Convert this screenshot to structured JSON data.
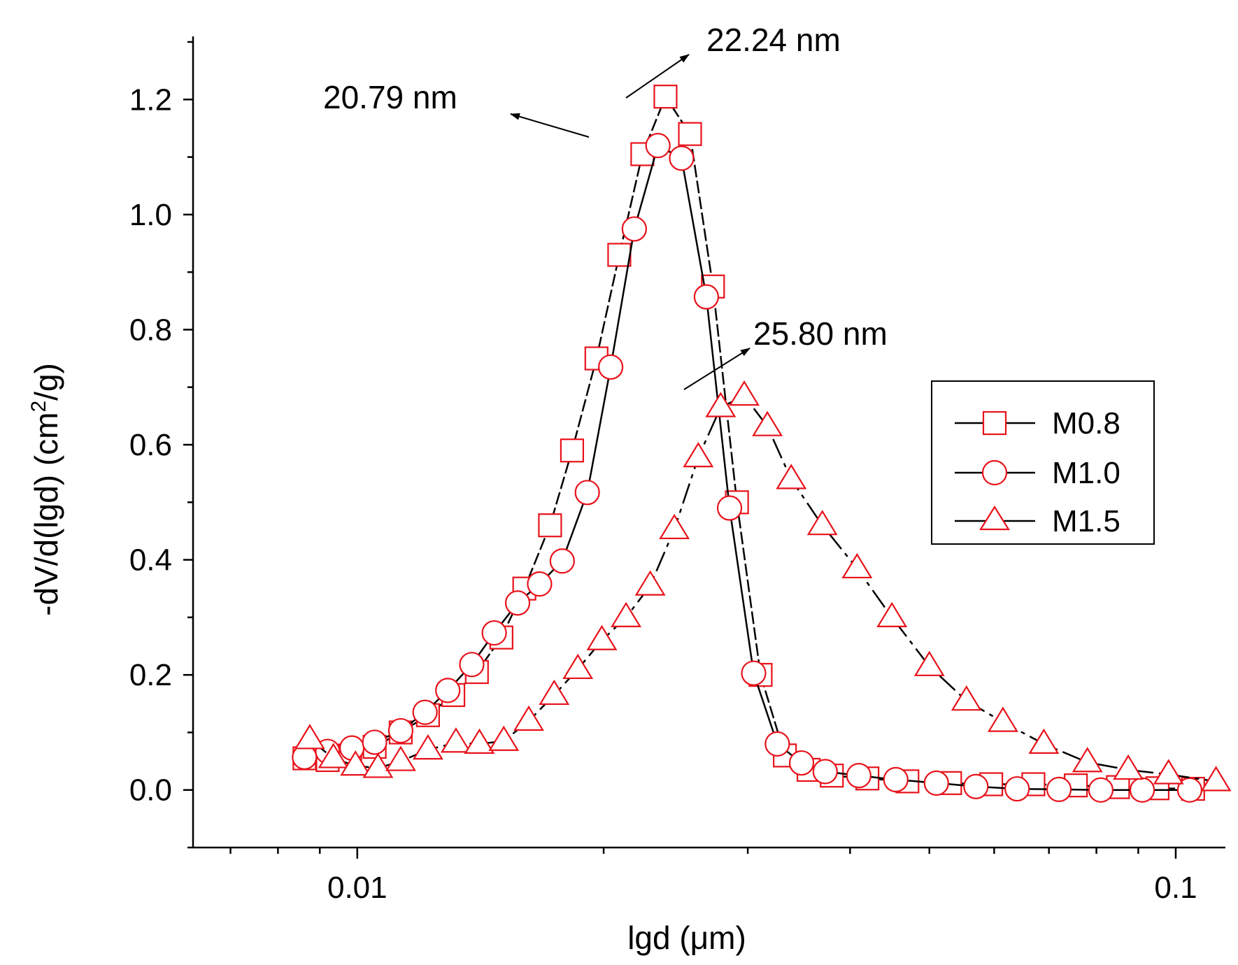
{
  "chart_data": {
    "type": "line",
    "x_scale": "log",
    "xlabel": "lgd (μm)",
    "ylabel_main": "-dV/d(lgd) (cm",
    "ylabel_sup": "2",
    "ylabel_tail": "/g)",
    "xlim": [
      0.0063,
      0.115
    ],
    "ylim": [
      -0.1,
      1.3
    ],
    "x_ticks": [
      {
        "value": 0.01,
        "label": "0.01"
      },
      {
        "value": 0.1,
        "label": "0.1"
      }
    ],
    "y_ticks": [
      {
        "value": 0.0,
        "label": "0.0"
      },
      {
        "value": 0.2,
        "label": "0.2"
      },
      {
        "value": 0.4,
        "label": "0.4"
      },
      {
        "value": 0.6,
        "label": "0.6"
      },
      {
        "value": 0.8,
        "label": "0.8"
      },
      {
        "value": 1.0,
        "label": "1.0"
      },
      {
        "value": 1.2,
        "label": "1.2"
      }
    ],
    "legend_position": "right",
    "series": [
      {
        "name": "M0.8",
        "marker": "square",
        "dash": "18,5",
        "points": [
          [
            0.00862,
            0.055
          ],
          [
            0.0092,
            0.052
          ],
          [
            0.0098,
            0.06
          ],
          [
            0.0105,
            0.075
          ],
          [
            0.0113,
            0.1
          ],
          [
            0.0122,
            0.13
          ],
          [
            0.0131,
            0.165
          ],
          [
            0.014,
            0.205
          ],
          [
            0.015,
            0.265
          ],
          [
            0.016,
            0.35
          ],
          [
            0.0172,
            0.46
          ],
          [
            0.0183,
            0.59
          ],
          [
            0.0196,
            0.75
          ],
          [
            0.0209,
            0.93
          ],
          [
            0.0223,
            1.105
          ],
          [
            0.0238,
            1.205
          ],
          [
            0.0255,
            1.14
          ],
          [
            0.0272,
            0.875
          ],
          [
            0.0291,
            0.5
          ],
          [
            0.0311,
            0.2
          ],
          [
            0.0333,
            0.06
          ],
          [
            0.0356,
            0.035
          ],
          [
            0.038,
            0.025
          ],
          [
            0.042,
            0.02
          ],
          [
            0.047,
            0.015
          ],
          [
            0.053,
            0.012
          ],
          [
            0.0595,
            0.01
          ],
          [
            0.067,
            0.01
          ],
          [
            0.0755,
            0.008
          ],
          [
            0.085,
            0.005
          ],
          [
            0.095,
            0.003
          ],
          [
            0.105,
            0.002
          ]
        ]
      },
      {
        "name": "M1.0",
        "marker": "circle",
        "dash": "none",
        "points": [
          [
            0.00862,
            0.057
          ],
          [
            0.0092,
            0.067
          ],
          [
            0.00985,
            0.073
          ],
          [
            0.0105,
            0.083
          ],
          [
            0.0113,
            0.103
          ],
          [
            0.0121,
            0.135
          ],
          [
            0.0129,
            0.173
          ],
          [
            0.0138,
            0.218
          ],
          [
            0.0147,
            0.273
          ],
          [
            0.0157,
            0.325
          ],
          [
            0.0167,
            0.358
          ],
          [
            0.0178,
            0.398
          ],
          [
            0.0191,
            0.517
          ],
          [
            0.0204,
            0.735
          ],
          [
            0.0218,
            0.975
          ],
          [
            0.0233,
            1.12
          ],
          [
            0.0249,
            1.098
          ],
          [
            0.0267,
            0.857
          ],
          [
            0.0285,
            0.49
          ],
          [
            0.0305,
            0.203
          ],
          [
            0.0326,
            0.08
          ],
          [
            0.0349,
            0.047
          ],
          [
            0.0373,
            0.032
          ],
          [
            0.041,
            0.025
          ],
          [
            0.0455,
            0.018
          ],
          [
            0.051,
            0.012
          ],
          [
            0.057,
            0.006
          ],
          [
            0.064,
            0.002
          ],
          [
            0.072,
            0.001
          ],
          [
            0.081,
            0.0
          ],
          [
            0.091,
            0.0
          ],
          [
            0.104,
            0.0
          ]
        ]
      },
      {
        "name": "M1.5",
        "marker": "triangle",
        "dash": "30,8,6,8",
        "points": [
          [
            0.00875,
            0.088
          ],
          [
            0.00935,
            0.055
          ],
          [
            0.00995,
            0.042
          ],
          [
            0.0106,
            0.038
          ],
          [
            0.0113,
            0.05
          ],
          [
            0.0122,
            0.07
          ],
          [
            0.0132,
            0.082
          ],
          [
            0.0141,
            0.08
          ],
          [
            0.0151,
            0.085
          ],
          [
            0.0162,
            0.12
          ],
          [
            0.0174,
            0.165
          ],
          [
            0.0186,
            0.21
          ],
          [
            0.0199,
            0.26
          ],
          [
            0.0213,
            0.3
          ],
          [
            0.0228,
            0.355
          ],
          [
            0.0244,
            0.453
          ],
          [
            0.0261,
            0.578
          ],
          [
            0.0278,
            0.665
          ],
          [
            0.0297,
            0.685
          ],
          [
            0.0317,
            0.632
          ],
          [
            0.0339,
            0.54
          ],
          [
            0.037,
            0.46
          ],
          [
            0.0408,
            0.385
          ],
          [
            0.045,
            0.3
          ],
          [
            0.05,
            0.215
          ],
          [
            0.0555,
            0.155
          ],
          [
            0.0615,
            0.118
          ],
          [
            0.069,
            0.08
          ],
          [
            0.078,
            0.048
          ],
          [
            0.0875,
            0.035
          ],
          [
            0.098,
            0.027
          ],
          [
            0.112,
            0.015
          ]
        ]
      }
    ],
    "annotations": [
      {
        "text": "22.24 nm"
      },
      {
        "text": "20.79 nm"
      },
      {
        "text": "25.80 nm"
      }
    ]
  }
}
